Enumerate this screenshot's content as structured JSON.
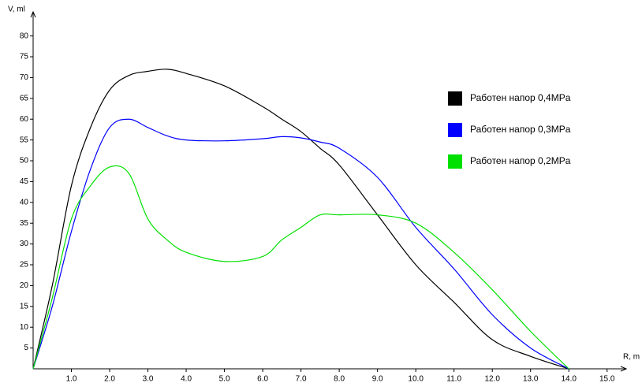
{
  "chart_data": {
    "type": "line",
    "x_label": "R, m",
    "y_label": "V, ml",
    "x": [
      0,
      0.5,
      1,
      1.5,
      2,
      2.5,
      3,
      3.5,
      4,
      5,
      6,
      6.5,
      7,
      7.5,
      8,
      9,
      10,
      11,
      12,
      13,
      14
    ],
    "series": [
      {
        "name": "Работен напор 0,4MPa",
        "color": "#000000",
        "values": [
          0,
          20,
          44,
          58,
          67,
          70.5,
          71.5,
          72,
          71,
          68,
          63,
          60,
          57,
          53,
          49,
          37,
          25,
          16,
          7,
          3,
          0
        ]
      },
      {
        "name": "Работен напор 0,3MPa",
        "color": "#0000ff",
        "values": [
          0,
          15,
          33,
          48,
          58,
          60,
          58,
          56,
          55,
          54.8,
          55.3,
          55.8,
          55.5,
          54.5,
          53,
          46,
          34,
          24,
          13,
          5,
          0
        ]
      },
      {
        "name": "Работен напор 0,2MPa",
        "color": "#00e000",
        "values": [
          0,
          17,
          36,
          44,
          48.5,
          47,
          36,
          31,
          28,
          25.8,
          27,
          31,
          34,
          37,
          37,
          37,
          35,
          28,
          19,
          9,
          0
        ]
      }
    ],
    "xlim": [
      0,
      15.5
    ],
    "ylim": [
      0,
      85.8
    ],
    "xticks": [
      {
        "value": 1,
        "label": "1.0"
      },
      {
        "value": 2,
        "label": "2.0"
      },
      {
        "value": 3,
        "label": "3.0"
      },
      {
        "value": 4,
        "label": "4.0"
      },
      {
        "value": 5,
        "label": "5.0"
      },
      {
        "value": 6,
        "label": "6.0"
      },
      {
        "value": 7,
        "label": "7.0"
      },
      {
        "value": 8,
        "label": "8.0"
      },
      {
        "value": 9,
        "label": "9.0"
      },
      {
        "value": 10,
        "label": "10.0"
      },
      {
        "value": 11,
        "label": "11.0"
      },
      {
        "value": 12,
        "label": "12.0"
      },
      {
        "value": 13,
        "label": "13.0"
      },
      {
        "value": 14,
        "label": "14.0"
      },
      {
        "value": 15,
        "label": "15.0"
      }
    ],
    "yticks": [
      5,
      10,
      15,
      20,
      25,
      30,
      35,
      40,
      45,
      50,
      55,
      60,
      65,
      70,
      75,
      80
    ],
    "legend": "right"
  }
}
